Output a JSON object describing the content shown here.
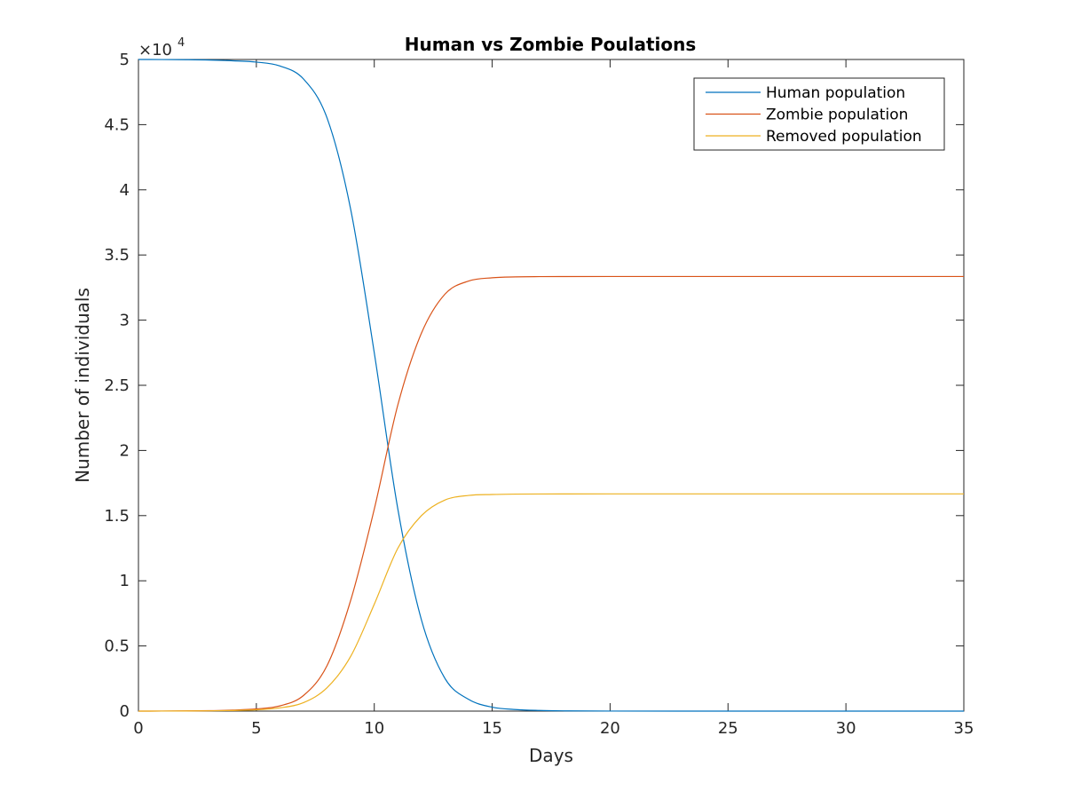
{
  "chart_data": {
    "type": "line",
    "title": "Human vs Zombie Poulations",
    "xlabel": "Days",
    "ylabel": "Number of individuals",
    "y_exponent_label": "×10",
    "y_exponent_power": "4",
    "xlim": [
      0,
      35
    ],
    "ylim": [
      0,
      50000
    ],
    "x_ticks": [
      "0",
      "5",
      "10",
      "15",
      "20",
      "25",
      "30",
      "35"
    ],
    "y_ticks": [
      "0",
      "0.5",
      "1",
      "1.5",
      "2",
      "2.5",
      "3",
      "3.5",
      "4",
      "4.5",
      "5"
    ],
    "grid": false,
    "legend_position": "top-right",
    "x": [
      0,
      1,
      2,
      3,
      4,
      5,
      6,
      7,
      8,
      9,
      10,
      11,
      12,
      13,
      14,
      15,
      16,
      17,
      18,
      20,
      25,
      30,
      35
    ],
    "series": [
      {
        "name": "Human population",
        "color": "#0072BD",
        "values": [
          50000,
          49995,
          49985,
          49960,
          49900,
          49800,
          49500,
          48500,
          45500,
          38500,
          27500,
          15500,
          7000,
          2500,
          900,
          300,
          120,
          50,
          20,
          5,
          0,
          0,
          0
        ]
      },
      {
        "name": "Zombie population",
        "color": "#D95319",
        "values": [
          0,
          5,
          15,
          35,
          80,
          170,
          400,
          1200,
          3500,
          8500,
          15500,
          23500,
          29000,
          32000,
          33000,
          33250,
          33320,
          33340,
          33345,
          33350,
          33350,
          33350,
          33350
        ]
      },
      {
        "name": "Removed population",
        "color": "#EDB120",
        "values": [
          0,
          3,
          8,
          20,
          45,
          100,
          250,
          650,
          1800,
          4200,
          8200,
          12500,
          15000,
          16200,
          16550,
          16620,
          16650,
          16660,
          16665,
          16667,
          16667,
          16667,
          16667
        ]
      }
    ]
  }
}
